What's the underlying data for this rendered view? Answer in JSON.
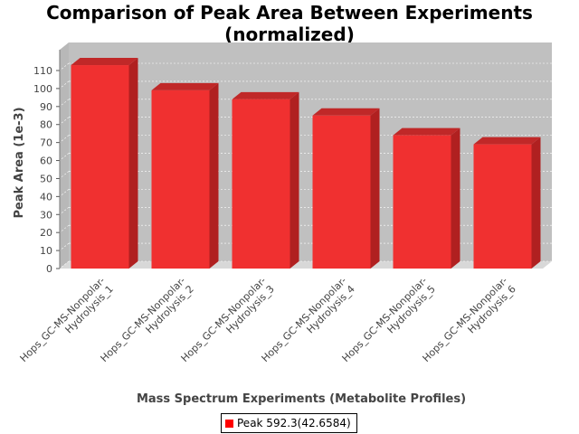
{
  "chart_data": {
    "type": "bar",
    "title": [
      "Comparison of Peak Area Between Experiments",
      "(normalized)"
    ],
    "xlabel": "Mass Spectrum Experiments (Metabolite Profiles)",
    "ylabel": "Peak Area (1e-3)",
    "categories": [
      [
        "Hops_GC-MS-Nonpolar-",
        "Hydrolysis_1"
      ],
      [
        "Hops_GC-MS-Nonpolar-",
        "Hydrolysis_2"
      ],
      [
        "Hops_GC-MS-Nonpolar-",
        "Hydrolysis_3"
      ],
      [
        "Hops_GC-MS-Nonpolar-",
        "Hydrolysis_4"
      ],
      [
        "Hops_GC-MS-Nonpolar-",
        "Hydrolysis_5"
      ],
      [
        "Hops_GC-MS-Nonpolar-",
        "Hydrolysis_6"
      ]
    ],
    "series": [
      {
        "name": "Peak 592.3(42.6584)",
        "values": [
          113,
          99,
          94,
          85,
          74,
          69
        ]
      }
    ],
    "ylim": [
      0,
      110
    ],
    "yticks": [
      0,
      10,
      20,
      30,
      40,
      50,
      60,
      70,
      80,
      90,
      100,
      110
    ],
    "grid": true,
    "legend": "bottom",
    "colors": {
      "bar_front": "#f03030",
      "bar_top": "#c02828",
      "bar_side": "#b02020",
      "plot_bg": "#c0c0c0",
      "floor": "#d8d8d8",
      "legend_swatch": "#ff0000"
    }
  }
}
